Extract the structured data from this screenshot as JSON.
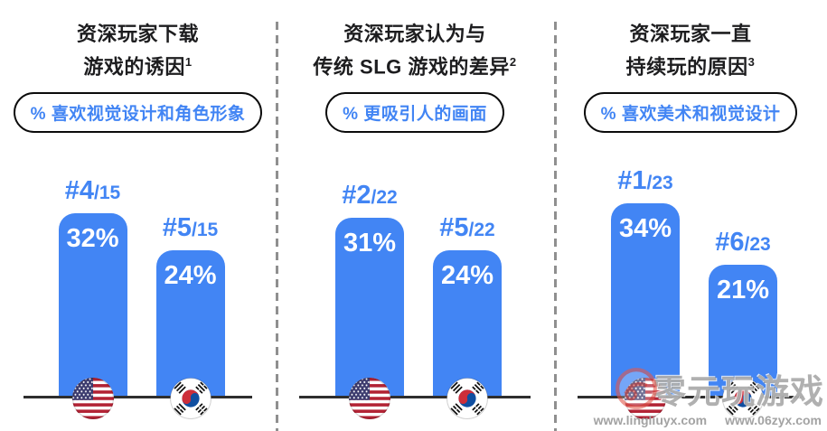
{
  "colors": {
    "bar_blue": "#4285F4",
    "rank_text": "#4285F4",
    "pill_text": "#4285F4",
    "header_text": "#1d1d1f",
    "axis_line": "#2e2e2e",
    "divider": "#8f8f8f"
  },
  "panels": [
    {
      "title": [
        "资深玩家下载",
        "游戏的诱因"
      ],
      "sup": "1",
      "pill": "% 喜欢视觉设计和角色形象",
      "bars": [
        {
          "country": "United States",
          "rank": "#4",
          "of": "/15",
          "value": 32,
          "label": "32%"
        },
        {
          "country": "South Korea",
          "rank": "#5",
          "of": "/15",
          "value": 24,
          "label": "24%"
        }
      ]
    },
    {
      "title": [
        "资深玩家认为与",
        "传统 SLG 游戏的差异"
      ],
      "sup": "2",
      "pill": "% 更吸引人的画面",
      "bars": [
        {
          "country": "United States",
          "rank": "#2",
          "of": "/22",
          "value": 31,
          "label": "31%"
        },
        {
          "country": "South Korea",
          "rank": "#5",
          "of": "/22",
          "value": 24,
          "label": "24%"
        }
      ]
    },
    {
      "title": [
        "资深玩家一直",
        "持续玩的原因"
      ],
      "sup": "3",
      "pill": "% 喜欢美术和视觉设计",
      "bars": [
        {
          "country": "United States",
          "rank": "#1",
          "of": "/23",
          "value": 34,
          "label": "34%"
        },
        {
          "country": "South Korea",
          "rank": "#6",
          "of": "/23",
          "value": 21,
          "label": "21%"
        }
      ]
    }
  ],
  "watermark": {
    "text": "零元玩游戏",
    "url_left": "www.lingliuyx.com",
    "url_right": "www.06zyx.com"
  },
  "chart_data": [
    {
      "type": "bar",
      "title": "资深玩家下载游戏的诱因 (1)",
      "measure": "% 喜欢视觉设计和角色形象",
      "categories": [
        "United States",
        "South Korea"
      ],
      "values": [
        32,
        24
      ],
      "ranks": [
        "#4/15",
        "#5/15"
      ],
      "value_labels": [
        "32%",
        "24%"
      ],
      "ylabel": "%",
      "ylim": [
        0,
        40
      ],
      "grid": false,
      "legend": "none"
    },
    {
      "type": "bar",
      "title": "资深玩家认为与传统 SLG 游戏的差异 (2)",
      "measure": "% 更吸引人的画面",
      "categories": [
        "United States",
        "South Korea"
      ],
      "values": [
        31,
        24
      ],
      "ranks": [
        "#2/22",
        "#5/22"
      ],
      "value_labels": [
        "31%",
        "24%"
      ],
      "ylabel": "%",
      "ylim": [
        0,
        40
      ],
      "grid": false,
      "legend": "none"
    },
    {
      "type": "bar",
      "title": "资深玩家一直持续玩的原因 (3)",
      "measure": "% 喜欢美术和视觉设计",
      "categories": [
        "United States",
        "South Korea"
      ],
      "values": [
        34,
        21
      ],
      "ranks": [
        "#1/23",
        "#6/23"
      ],
      "value_labels": [
        "34%",
        "21%"
      ],
      "ylabel": "%",
      "ylim": [
        0,
        40
      ],
      "grid": false,
      "legend": "none"
    }
  ]
}
